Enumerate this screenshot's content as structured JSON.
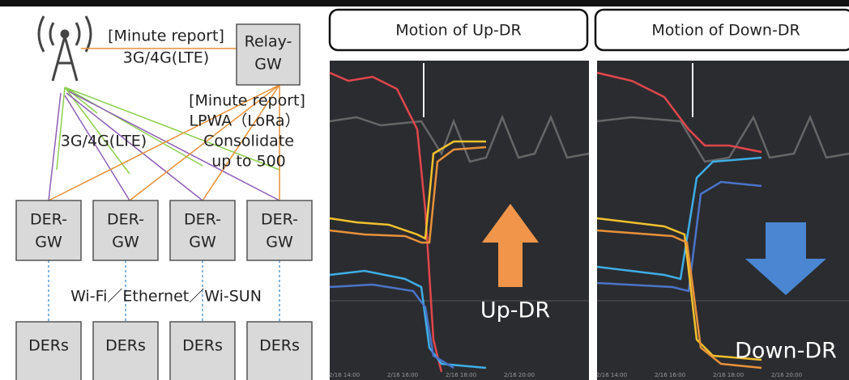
{
  "network": {
    "uplink_label": {
      "line1": "[Minute report]",
      "line2": "3G/4G(LTE)"
    },
    "relay_gw": {
      "line1": "Relay-",
      "line2": "GW"
    },
    "lpwa_label": {
      "line1": "[Minute report]",
      "line2": "LPWA（LoRa）",
      "line3": "Consolidate",
      "line4": "up to 500"
    },
    "cellular_label": "3G/4G(LTE)",
    "der_gws": [
      {
        "line1": "DER-",
        "line2": "GW"
      },
      {
        "line1": "DER-",
        "line2": "GW"
      },
      {
        "line1": "DER-",
        "line2": "GW"
      },
      {
        "line1": "DER-",
        "line2": "GW"
      }
    ],
    "local_link_label": "Wi-Fi／Ethernet／Wi-SUN",
    "ders": [
      "DERs",
      "DERs",
      "DERs",
      "DERs"
    ]
  },
  "panels": [
    {
      "title": "Motion of Up-DR",
      "arrow_label": "Up-DR",
      "time_labels": [
        "2/16 14:00",
        "2/16 16:00",
        "2/16 18:00",
        "2/16 20:00"
      ]
    },
    {
      "title": "Motion of Down-DR",
      "arrow_label": "Down-DR",
      "time_labels": [
        "2/16 14:00",
        "2/16 16:00",
        "2/16 18:00",
        "2/16 20:00"
      ]
    }
  ]
}
